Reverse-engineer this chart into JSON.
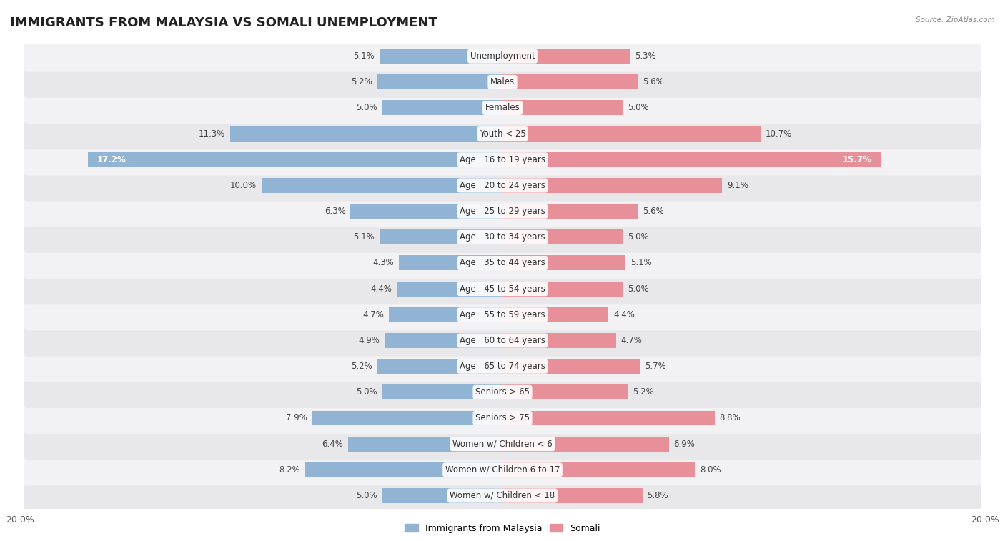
{
  "title": "IMMIGRANTS FROM MALAYSIA VS SOMALI UNEMPLOYMENT",
  "source": "Source: ZipAtlas.com",
  "categories": [
    "Unemployment",
    "Males",
    "Females",
    "Youth < 25",
    "Age | 16 to 19 years",
    "Age | 20 to 24 years",
    "Age | 25 to 29 years",
    "Age | 30 to 34 years",
    "Age | 35 to 44 years",
    "Age | 45 to 54 years",
    "Age | 55 to 59 years",
    "Age | 60 to 64 years",
    "Age | 65 to 74 years",
    "Seniors > 65",
    "Seniors > 75",
    "Women w/ Children < 6",
    "Women w/ Children 6 to 17",
    "Women w/ Children < 18"
  ],
  "malaysia_values": [
    5.1,
    5.2,
    5.0,
    11.3,
    17.2,
    10.0,
    6.3,
    5.1,
    4.3,
    4.4,
    4.7,
    4.9,
    5.2,
    5.0,
    7.9,
    6.4,
    8.2,
    5.0
  ],
  "somali_values": [
    5.3,
    5.6,
    5.0,
    10.7,
    15.7,
    9.1,
    5.6,
    5.0,
    5.1,
    5.0,
    4.4,
    4.7,
    5.7,
    5.2,
    8.8,
    6.9,
    8.0,
    5.8
  ],
  "malaysia_color": "#92b4d4",
  "somali_color": "#e8909a",
  "bar_height": 0.58,
  "xlim": 20.0,
  "row_colors": [
    "#e8e8eb",
    "#f2f2f5"
  ],
  "title_fontsize": 13,
  "label_fontsize": 8.5,
  "value_fontsize": 8.5,
  "legend_malaysia": "Immigrants from Malaysia",
  "legend_somali": "Somali",
  "white_text_threshold": 14.0
}
